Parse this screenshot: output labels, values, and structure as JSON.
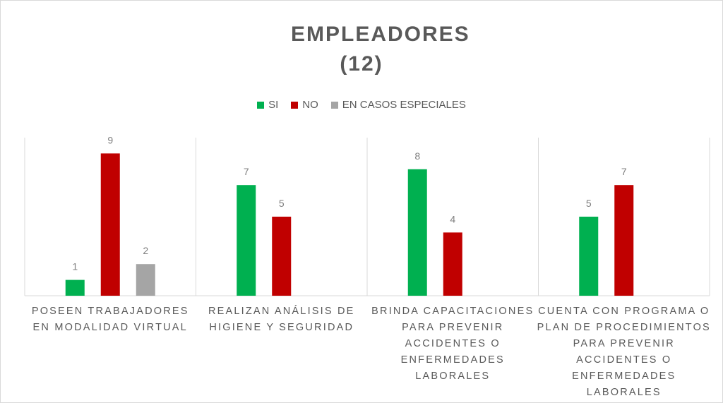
{
  "chart_data": {
    "type": "bar",
    "title": "EMPLEADORES (12)",
    "categories": [
      "POSEEN TRABAJADORES EN MODALIDAD VIRTUAL",
      "REALIZAN ANÁLISIS DE HIGIENE Y SEGURIDAD",
      "BRINDA CAPACITACIONES PARA PREVENIR ACCIDENTES O ENFERMEDADES LABORALES",
      "CUENTA CON PROGRAMA O PLAN DE PROCEDIMIENTOS PARA PREVENIR ACCIDENTES O ENFERMEDADES LABORALES"
    ],
    "series": [
      {
        "name": "SI",
        "color": "#00b050",
        "values": [
          1,
          7,
          8,
          5
        ]
      },
      {
        "name": "NO",
        "color": "#c00000",
        "values": [
          9,
          5,
          4,
          7
        ]
      },
      {
        "name": "EN CASOS ESPECIALES",
        "color": "#a5a5a5",
        "values": [
          2,
          null,
          null,
          null
        ]
      }
    ],
    "ylim": [
      0,
      10
    ],
    "legend": "top"
  }
}
